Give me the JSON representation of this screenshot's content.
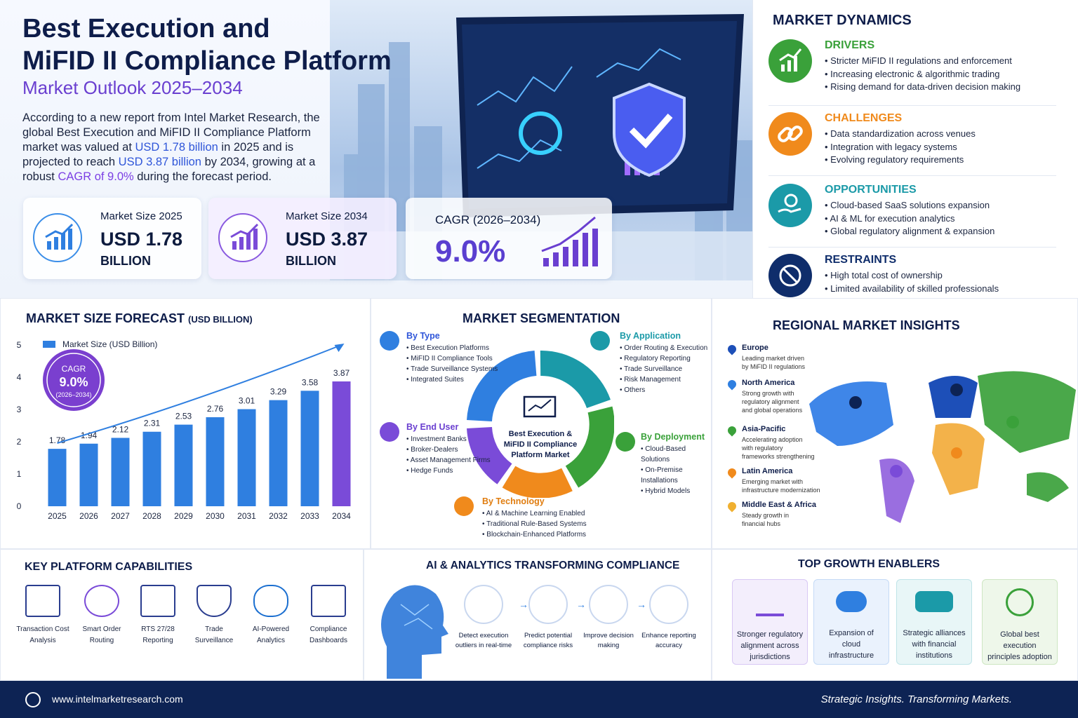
{
  "header": {
    "title_line1": "Best Execution and",
    "title_line2": "MiFID II Compliance Platform",
    "subtitle": "Market Outlook 2025–2034",
    "intro_p1": "According to a new report from Intel Market Research, the global Best Execution and MiFID II Compliance Platform market was valued at ",
    "intro_v1": "USD 1.78 billion",
    "intro_p2": " in 2025 and is projected to reach ",
    "intro_v2": "USD 3.87 billion",
    "intro_p3": " by 2034, growing at a robust ",
    "intro_v3": "CAGR of 9.0%",
    "intro_p4": " during the forecast period."
  },
  "stats": [
    {
      "label": "Market Size 2025",
      "value": "USD 1.78",
      "unit": "BILLION"
    },
    {
      "label": "Market Size 2034",
      "value": "USD 3.87",
      "unit": "BILLION"
    },
    {
      "label": "CAGR (2026–2034)",
      "value": "9.0%"
    }
  ],
  "dynamics": {
    "title": "MARKET DYNAMICS",
    "groups": [
      {
        "name": "DRIVERS",
        "color": "#3aa13a",
        "items": [
          "Stricter MiFID II regulations and enforcement",
          "Increasing electronic & algorithmic trading",
          "Rising demand for data-driven decision making"
        ]
      },
      {
        "name": "CHALLENGES",
        "color": "#f08a1c",
        "items": [
          "Data standardization across venues",
          "Integration with legacy systems",
          "Evolving regulatory requirements"
        ]
      },
      {
        "name": "OPPORTUNITIES",
        "color": "#1b9aa8",
        "items": [
          "Cloud-based SaaS solutions expansion",
          "AI & ML for execution analytics",
          "Global regulatory alignment & expansion"
        ]
      },
      {
        "name": "RESTRAINTS",
        "color": "#0f2d6b",
        "items": [
          "High total cost of ownership",
          "Limited availability of skilled professionals"
        ]
      }
    ]
  },
  "forecast": {
    "title": "MARKET SIZE FORECAST",
    "title_unit": "(USD BILLION)",
    "legend": "Market Size (USD Billion)",
    "cagr_label": "CAGR",
    "cagr_value": "9.0%",
    "cagr_period": "(2026–2034)"
  },
  "chart_data": {
    "type": "bar",
    "categories": [
      "2025",
      "2026",
      "2027",
      "2028",
      "2029",
      "2030",
      "2031",
      "2032",
      "2033",
      "2034"
    ],
    "values": [
      1.78,
      1.94,
      2.12,
      2.31,
      2.53,
      2.76,
      3.01,
      3.29,
      3.58,
      3.87
    ],
    "series": [
      {
        "name": "Market Size (USD Billion)",
        "values": [
          1.78,
          1.94,
          2.12,
          2.31,
          2.53,
          2.76,
          3.01,
          3.29,
          3.58,
          3.87
        ]
      }
    ],
    "yticks": [
      0,
      1,
      2,
      3,
      4,
      5
    ],
    "ylim": [
      0,
      5
    ],
    "title": "MARKET SIZE FORECAST (USD BILLION)",
    "legend": "top-left",
    "colors": {
      "bar": "#2f7fe0",
      "last_bar": "#7a4bd8"
    }
  },
  "segmentation": {
    "title": "MARKET SEGMENTATION",
    "center": [
      "Best Execution &",
      "MiFID II Compliance",
      "Platform Market"
    ],
    "by_type": {
      "title": "By Type",
      "items": [
        "Best Execution Platforms",
        "MiFID II Compliance Tools",
        "Trade Surveillance Systems",
        "Integrated Suites"
      ]
    },
    "by_application": {
      "title": "By Application",
      "items": [
        "Order Routing & Execution",
        "Regulatory Reporting",
        "Trade Surveillance",
        "Risk Management",
        "Others"
      ]
    },
    "by_end_user": {
      "title": "By End User",
      "items": [
        "Investment Banks",
        "Broker-Dealers",
        "Asset Management Firms",
        "Hedge Funds"
      ]
    },
    "by_deployment": {
      "title": "By Deployment",
      "items": [
        "Cloud-Based Solutions",
        "On-Premise Installations",
        "Hybrid Models"
      ]
    },
    "by_technology": {
      "title": "By Technology",
      "items": [
        "AI & Machine Learning Enabled",
        "Traditional Rule-Based Systems",
        "Blockchain-Enhanced Platforms"
      ]
    }
  },
  "regional": {
    "title": "REGIONAL MARKET INSIGHTS",
    "regions": [
      {
        "name": "Europe",
        "desc1": "Leading market driven",
        "desc2": "by MiFID II regulations",
        "desc3": "",
        "color": "#1d4fb8"
      },
      {
        "name": "North America",
        "desc1": "Strong growth with",
        "desc2": "regulatory alignment",
        "desc3": "and global operations",
        "color": "#2f7fe0"
      },
      {
        "name": "Asia-Pacific",
        "desc1": "Accelerating adoption",
        "desc2": "with regulatory",
        "desc3": "frameworks strengthening",
        "color": "#3aa13a"
      },
      {
        "name": "Latin America",
        "desc1": "Emerging market with",
        "desc2": "infrastructure modernization",
        "desc3": "",
        "color": "#f08a1c"
      },
      {
        "name": "Middle East & Africa",
        "desc1": "Steady growth in",
        "desc2": "financial hubs",
        "desc3": "",
        "color": "#f0b030"
      }
    ]
  },
  "capabilities": {
    "title": "KEY PLATFORM CAPABILITIES",
    "items": [
      {
        "l1": "Transaction Cost",
        "l2": "Analysis"
      },
      {
        "l1": "Smart Order",
        "l2": "Routing"
      },
      {
        "l1": "RTS 27/28",
        "l2": "Reporting"
      },
      {
        "l1": "Trade",
        "l2": "Surveillance"
      },
      {
        "l1": "AI-Powered",
        "l2": "Analytics"
      },
      {
        "l1": "Compliance",
        "l2": "Dashboards"
      }
    ]
  },
  "ai": {
    "title": "AI & ANALYTICS TRANSFORMING COMPLIANCE",
    "steps": [
      {
        "l1": "Detect execution",
        "l2": "outliers in real-time"
      },
      {
        "l1": "Predict potential",
        "l2": "compliance risks"
      },
      {
        "l1": "Improve decision",
        "l2": "making"
      },
      {
        "l1": "Enhance reporting",
        "l2": "accuracy"
      }
    ]
  },
  "enablers": {
    "title": "TOP GROWTH ENABLERS",
    "items": [
      {
        "l1": "Stronger regulatory",
        "l2": "alignment across",
        "l3": "jurisdictions",
        "color": "#7a4bd8"
      },
      {
        "l1": "Expansion of",
        "l2": "cloud",
        "l3": "infrastructure",
        "color": "#2f7fe0"
      },
      {
        "l1": "Strategic alliances",
        "l2": "with financial",
        "l3": "institutions",
        "color": "#1b9aa8"
      },
      {
        "l1": "Global best",
        "l2": "execution",
        "l3": "principles adoption",
        "color": "#3aa13a"
      }
    ]
  },
  "footer": {
    "url": "www.intelmarketresearch.com",
    "tagline": "Strategic Insights. Transforming Markets."
  }
}
